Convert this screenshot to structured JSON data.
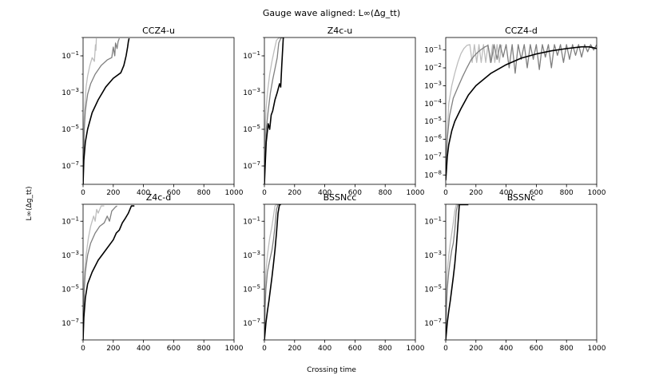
{
  "figure": {
    "title": "Gauge wave aligned: L∞(Δg_tt)",
    "xlabel": "Crossing time",
    "ylabel": "L∞(Δg_tt)"
  },
  "chart_data": [
    {
      "type": "line",
      "title": "CCZ4-u",
      "xlim": [
        0,
        1000
      ],
      "ylim": [
        1e-08,
        1
      ],
      "yscale": "log",
      "xticks": [
        0,
        200,
        400,
        600,
        800,
        1000
      ],
      "yticks": [
        1e-07,
        1e-05,
        0.001,
        0.1
      ],
      "ytick_labels": [
        "10^-7",
        "10^-5",
        "10^-3",
        "10^-1"
      ],
      "grid": false,
      "series": [
        {
          "color": "#bdbdbd",
          "x": [
            0,
            5,
            10,
            20,
            30,
            45,
            60,
            75,
            82,
            85,
            88
          ],
          "y": [
            1e-08,
            1e-05,
            0.0001,
            0.002,
            0.008,
            0.03,
            0.08,
            0.05,
            0.4,
            0.2,
            0.9
          ]
        },
        {
          "color": "#7f7f7f",
          "x": [
            0,
            8,
            15,
            30,
            50,
            80,
            120,
            160,
            190,
            200,
            210,
            215,
            225,
            232,
            240
          ],
          "y": [
            1e-08,
            1e-05,
            0.0001,
            0.0008,
            0.003,
            0.01,
            0.03,
            0.06,
            0.08,
            0.3,
            0.1,
            0.5,
            0.25,
            0.6,
            0.9
          ]
        },
        {
          "color": "#000000",
          "x": [
            0,
            5,
            15,
            30,
            60,
            100,
            150,
            200,
            250,
            270,
            285,
            295,
            300,
            305
          ],
          "y": [
            1e-08,
            2e-07,
            2e-06,
            1e-05,
            8e-05,
            0.0004,
            0.002,
            0.006,
            0.012,
            0.03,
            0.1,
            0.3,
            0.6,
            0.9
          ]
        }
      ]
    },
    {
      "type": "line",
      "title": "Z4c-u",
      "xlim": [
        0,
        1000
      ],
      "ylim": [
        1e-08,
        1
      ],
      "yscale": "log",
      "xticks": [
        0,
        200,
        400,
        600,
        800,
        1000
      ],
      "yticks": [
        1e-07,
        1e-05,
        0.001,
        0.1
      ],
      "ytick_labels": [
        "10^-7",
        "10^-5",
        "10^-3",
        "10^-1"
      ],
      "grid": false,
      "series": [
        {
          "color": "#bdbdbd",
          "x": [
            0,
            5,
            10,
            20,
            35,
            50,
            65,
            80,
            95,
            110
          ],
          "y": [
            1e-08,
            1e-05,
            0.0001,
            0.001,
            0.01,
            0.05,
            0.2,
            0.7,
            0.95,
            0.95
          ]
        },
        {
          "color": "#7f7f7f",
          "x": [
            0,
            5,
            12,
            25,
            40,
            55,
            70,
            85,
            95,
            110,
            120
          ],
          "y": [
            1e-08,
            3e-07,
            1e-05,
            0.0001,
            0.001,
            0.005,
            0.02,
            0.08,
            0.5,
            0.95,
            0.95
          ]
        },
        {
          "color": "#000000",
          "x": [
            0,
            5,
            12,
            25,
            35,
            45,
            55,
            70,
            85,
            100,
            108,
            115,
            125,
            130
          ],
          "y": [
            1e-08,
            1e-07,
            2e-06,
            2e-05,
            1e-05,
            6e-05,
            0.0001,
            0.0004,
            0.001,
            0.003,
            0.002,
            0.03,
            0.95,
            0.95
          ]
        }
      ]
    },
    {
      "type": "line",
      "title": "CCZ4-d",
      "xlim": [
        0,
        1000
      ],
      "ylim": [
        3e-09,
        0.5
      ],
      "yscale": "log",
      "xticks": [
        0,
        200,
        400,
        600,
        800,
        1000
      ],
      "yticks": [
        1e-08,
        1e-07,
        1e-06,
        1e-05,
        0.0001,
        0.001,
        0.01,
        0.1
      ],
      "ytick_labels": [
        "10^-8",
        "10^-7",
        "10^-6",
        "10^-5",
        "10^-4",
        "10^-3",
        "10^-2",
        "10^-1"
      ],
      "grid": false,
      "series": [
        {
          "color": "#bdbdbd",
          "x": [
            0,
            8,
            20,
            40,
            60,
            80,
            100,
            120,
            140,
            160,
            175,
            190,
            205,
            220,
            235,
            250,
            265,
            280,
            295,
            310,
            325,
            340,
            355,
            370
          ],
          "y": [
            1e-08,
            1e-06,
            0.0001,
            0.001,
            0.005,
            0.02,
            0.06,
            0.12,
            0.18,
            0.2,
            0.02,
            0.2,
            0.02,
            0.2,
            0.02,
            0.2,
            0.02,
            0.2,
            0.02,
            0.2,
            0.02,
            0.2,
            0.02,
            0.2
          ]
        },
        {
          "color": "#7f7f7f",
          "x": [
            0,
            10,
            25,
            50,
            80,
            110,
            140,
            170,
            200,
            230,
            260,
            280,
            300,
            320,
            340,
            360,
            380,
            400,
            420,
            440,
            460,
            480,
            500,
            520,
            540,
            560,
            580,
            600,
            620,
            640,
            660,
            680,
            700,
            720,
            740,
            760,
            780,
            800,
            820,
            840,
            860,
            880,
            900,
            920,
            940,
            960,
            980,
            1000
          ],
          "y": [
            1e-08,
            1e-06,
            2e-05,
            0.0002,
            0.0008,
            0.003,
            0.01,
            0.03,
            0.06,
            0.1,
            0.15,
            0.18,
            0.02,
            0.2,
            0.03,
            0.2,
            0.04,
            0.2,
            0.01,
            0.2,
            0.005,
            0.2,
            0.03,
            0.2,
            0.01,
            0.2,
            0.03,
            0.2,
            0.008,
            0.2,
            0.04,
            0.2,
            0.01,
            0.2,
            0.05,
            0.2,
            0.02,
            0.2,
            0.03,
            0.2,
            0.05,
            0.2,
            0.04,
            0.2,
            0.08,
            0.2,
            0.1,
            0.2
          ]
        },
        {
          "color": "#000000",
          "x": [
            0,
            5,
            10,
            20,
            40,
            60,
            100,
            150,
            200,
            300,
            400,
            500,
            600,
            700,
            800,
            900,
            950,
            1000
          ],
          "y": [
            5e-09,
            2e-08,
            1e-07,
            5e-07,
            3e-06,
            1e-05,
            5e-05,
            0.0003,
            0.001,
            0.005,
            0.015,
            0.035,
            0.06,
            0.09,
            0.12,
            0.15,
            0.15,
            0.12
          ]
        }
      ]
    },
    {
      "type": "line",
      "title": "Z4c-d",
      "xlim": [
        0,
        1000
      ],
      "ylim": [
        1e-08,
        1
      ],
      "yscale": "log",
      "xticks": [
        0,
        200,
        400,
        600,
        800,
        1000
      ],
      "yticks": [
        1e-07,
        1e-05,
        0.001,
        0.1
      ],
      "ytick_labels": [
        "10^-7",
        "10^-5",
        "10^-3",
        "10^-1"
      ],
      "grid": false,
      "series": [
        {
          "color": "#bdbdbd",
          "x": [
            0,
            5,
            10,
            20,
            35,
            50,
            70,
            80,
            90,
            100,
            120,
            140
          ],
          "y": [
            1e-08,
            1e-05,
            0.0001,
            0.001,
            0.01,
            0.05,
            0.2,
            0.1,
            0.5,
            0.3,
            0.8,
            0.8
          ]
        },
        {
          "color": "#7f7f7f",
          "x": [
            0,
            8,
            15,
            30,
            50,
            80,
            110,
            140,
            160,
            175,
            190,
            200,
            215,
            225
          ],
          "y": [
            1e-08,
            1e-05,
            0.0001,
            0.001,
            0.005,
            0.02,
            0.05,
            0.08,
            0.2,
            0.1,
            0.4,
            0.5,
            0.7,
            0.8
          ]
        },
        {
          "color": "#000000",
          "x": [
            0,
            5,
            15,
            30,
            60,
            100,
            150,
            200,
            220,
            240,
            260,
            280,
            300,
            320,
            340
          ],
          "y": [
            1e-08,
            2e-07,
            3e-06,
            2e-05,
            0.0001,
            0.0005,
            0.002,
            0.008,
            0.02,
            0.03,
            0.08,
            0.15,
            0.3,
            0.8,
            0.8
          ]
        }
      ]
    },
    {
      "type": "line",
      "title": "BSSNcc",
      "xlim": [
        0,
        1000
      ],
      "ylim": [
        1e-08,
        1
      ],
      "yscale": "log",
      "xticks": [
        0,
        200,
        400,
        600,
        800,
        1000
      ],
      "yticks": [
        1e-07,
        1e-05,
        0.001,
        0.1
      ],
      "ytick_labels": [
        "10^-7",
        "10^-5",
        "10^-3",
        "10^-1"
      ],
      "grid": false,
      "series": [
        {
          "color": "#bdbdbd",
          "x": [
            0,
            5,
            10,
            20,
            35,
            50,
            60,
            70,
            80,
            90
          ],
          "y": [
            1e-08,
            1e-05,
            0.0001,
            0.001,
            0.01,
            0.05,
            0.2,
            0.8,
            0.95,
            0.95
          ]
        },
        {
          "color": "#7f7f7f",
          "x": [
            0,
            5,
            10,
            20,
            35,
            50,
            60,
            70,
            80,
            90,
            100
          ],
          "y": [
            1e-08,
            1e-06,
            1e-05,
            0.0001,
            0.0005,
            0.002,
            0.008,
            0.05,
            0.5,
            0.95,
            0.95
          ]
        },
        {
          "color": "#000000",
          "x": [
            0,
            5,
            10,
            20,
            30,
            40,
            50,
            60,
            70,
            80,
            90,
            100,
            110
          ],
          "y": [
            1e-08,
            3e-08,
            1e-07,
            5e-07,
            2e-06,
            1e-05,
            5e-05,
            0.0003,
            0.002,
            0.02,
            0.3,
            0.95,
            0.95
          ]
        }
      ]
    },
    {
      "type": "line",
      "title": "BSSNc",
      "xlim": [
        0,
        1000
      ],
      "ylim": [
        1e-08,
        1
      ],
      "yscale": "log",
      "xticks": [
        0,
        200,
        400,
        600,
        800,
        1000
      ],
      "yticks": [
        1e-07,
        1e-05,
        0.001,
        0.1
      ],
      "ytick_labels": [
        "10^-7",
        "10^-5",
        "10^-3",
        "10^-1"
      ],
      "grid": false,
      "series": [
        {
          "color": "#bdbdbd",
          "x": [
            0,
            5,
            10,
            20,
            30,
            40,
            50,
            60,
            70,
            80
          ],
          "y": [
            1e-08,
            1e-05,
            0.0001,
            0.001,
            0.005,
            0.02,
            0.08,
            0.4,
            0.95,
            0.95
          ]
        },
        {
          "color": "#7f7f7f",
          "x": [
            0,
            5,
            10,
            20,
            30,
            40,
            50,
            60,
            70,
            80,
            90
          ],
          "y": [
            1e-08,
            1e-06,
            1e-05,
            0.0001,
            0.0005,
            0.002,
            0.005,
            0.03,
            0.4,
            0.95,
            0.95
          ]
        },
        {
          "color": "#000000",
          "x": [
            0,
            5,
            10,
            20,
            30,
            40,
            50,
            60,
            70,
            80,
            90,
            100,
            150
          ],
          "y": [
            1e-08,
            3e-08,
            1e-07,
            5e-07,
            2e-06,
            1e-05,
            5e-05,
            0.0003,
            0.003,
            0.05,
            0.95,
            0.95,
            0.95
          ]
        }
      ]
    }
  ]
}
